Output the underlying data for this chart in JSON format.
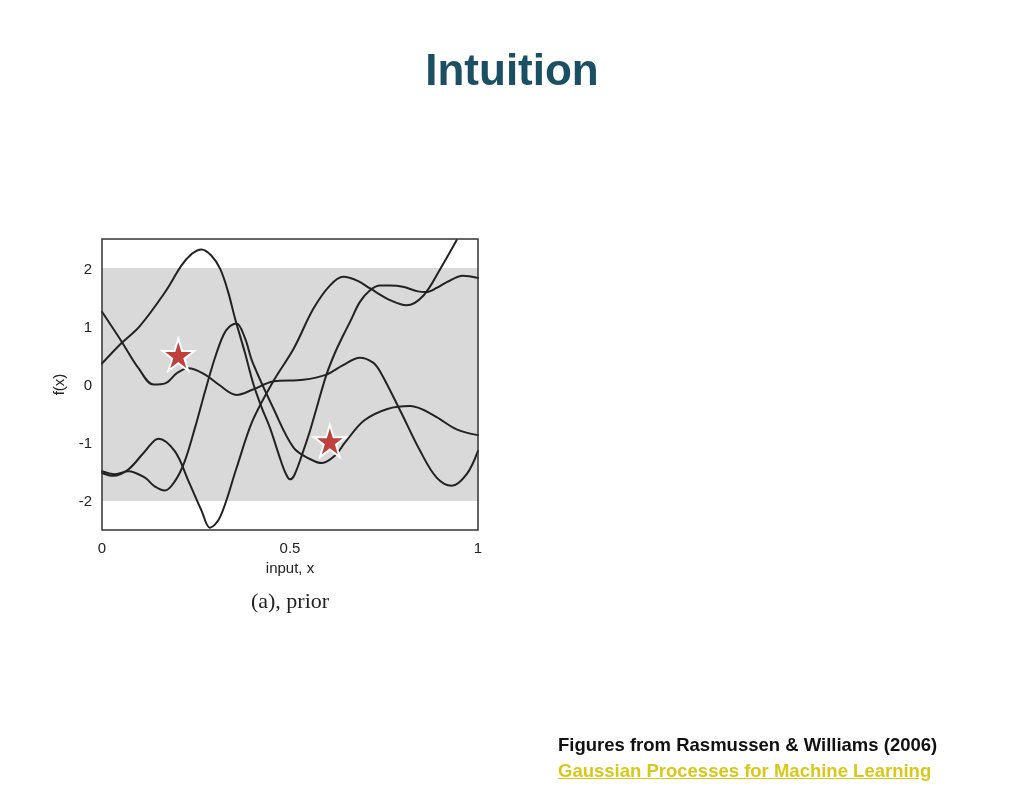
{
  "chart_data": {
    "type": "line",
    "title": "Intuition",
    "xlabel": "input, x",
    "ylabel": "f(x)",
    "annotations": [
      "(a), prior",
      "Figures from Rasmussen & Williams (2006)",
      "Gaussian Processes for Machine Learning"
    ],
    "series": [
      {
        "color": "#222222",
        "x": [
          0,
          0.05,
          0.1,
          0.168,
          0.212,
          0.24,
          0.265,
          0.29,
          0.314,
          0.335,
          0.354,
          0.38,
          0.403,
          0.425,
          0.447,
          0.473,
          0.488,
          0.5,
          0.512,
          0.535,
          0.553,
          0.571,
          0.597,
          0.62,
          0.642,
          0.66,
          0.686,
          0.713,
          0.74,
          0.766,
          0.8,
          0.84,
          0.863,
          0.89,
          0.917,
          0.96,
          1
        ],
        "values": [
          0.36,
          0.7,
          1.0,
          1.59,
          2.05,
          2.25,
          2.32,
          2.22,
          1.99,
          1.6,
          1.13,
          0.55,
          0.0,
          -0.4,
          -0.75,
          -1.26,
          -1.52,
          -1.63,
          -1.55,
          -1.15,
          -0.8,
          -0.4,
          0.17,
          0.55,
          0.85,
          1.08,
          1.42,
          1.62,
          1.7,
          1.7,
          1.68,
          1.6,
          1.59,
          1.66,
          1.76,
          1.87,
          1.83
        ]
      },
      {
        "color": "#222222",
        "x": [
          0,
          0.052,
          0.097,
          0.137,
          0.168,
          0.2,
          0.23,
          0.274,
          0.31,
          0.358,
          0.4,
          0.455,
          0.535,
          0.597,
          0.64,
          0.686,
          0.72,
          0.74,
          0.794,
          0.846,
          0.89,
          0.93,
          0.97,
          1
        ],
        "values": [
          1.25,
          0.74,
          0.28,
          0.0,
          0.02,
          0.2,
          0.28,
          0.17,
          0.0,
          -0.18,
          -0.09,
          0.05,
          0.08,
          0.17,
          0.33,
          0.46,
          0.38,
          0.22,
          -0.46,
          -1.14,
          -1.6,
          -1.74,
          -1.54,
          -1.14
        ]
      },
      {
        "color": "#222222",
        "x": [
          0,
          0.03,
          0.07,
          0.114,
          0.15,
          0.194,
          0.23,
          0.265,
          0.287,
          0.314,
          0.358,
          0.4,
          0.455,
          0.51,
          0.562,
          0.606,
          0.642,
          0.68,
          0.713,
          0.766,
          0.81,
          0.855,
          0.9,
          0.943
        ],
        "values": [
          -1.52,
          -1.57,
          -1.46,
          -1.15,
          -0.93,
          -1.15,
          -1.66,
          -2.17,
          -2.46,
          -2.28,
          -1.43,
          -0.63,
          0.05,
          0.62,
          1.3,
          1.7,
          1.85,
          1.78,
          1.65,
          1.45,
          1.36,
          1.53,
          1.99,
          2.48
        ]
      },
      {
        "color": "#222222",
        "x": [
          0,
          0.035,
          0.07,
          0.114,
          0.14,
          0.168,
          0.194,
          0.22,
          0.247,
          0.274,
          0.3,
          0.323,
          0.34,
          0.358,
          0.38,
          0.4,
          0.455,
          0.51,
          0.553,
          0.585,
          0.62,
          0.646,
          0.697,
          0.759,
          0.82,
          0.882,
          0.943,
          1
        ],
        "values": [
          -1.49,
          -1.54,
          -1.49,
          -1.6,
          -1.75,
          -1.82,
          -1.66,
          -1.32,
          -0.75,
          -0.12,
          0.45,
          0.85,
          1.0,
          1.05,
          0.8,
          0.39,
          -0.4,
          -1.09,
          -1.28,
          -1.35,
          -1.22,
          -1.0,
          -0.62,
          -0.42,
          -0.37,
          -0.53,
          -0.77,
          -0.87
        ]
      },
      {
        "type": "scatter",
        "color": "#c0403c",
        "marker": "star",
        "x": [
          0.203,
          0.606
        ],
        "values": [
          0.51,
          -0.97
        ]
      }
    ],
    "xlim": [
      0,
      1
    ],
    "ylim": [
      -2.5,
      2.5
    ],
    "xticks": [
      0,
      0.5,
      1
    ],
    "yticks": [
      -2,
      -1,
      0,
      1,
      2
    ],
    "bands": [
      {
        "axis": "y",
        "from": -2,
        "to": 2,
        "color": "#d9d9d9"
      }
    ],
    "grid": false
  }
}
